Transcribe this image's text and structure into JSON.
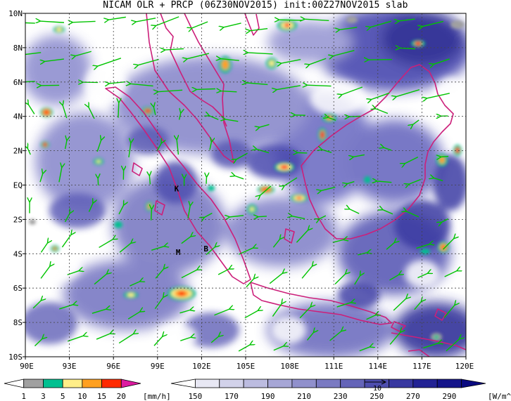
{
  "title": "NICAM OLR + PRCP (06Z30NOV2015) init:00Z27NOV2015 slab",
  "map": {
    "lon_range": [
      90,
      120
    ],
    "lat_range": [
      -10,
      10
    ],
    "x_ticks": [
      "90E",
      "93E",
      "96E",
      "99E",
      "102E",
      "105E",
      "108E",
      "111E",
      "114E",
      "117E",
      "120E"
    ],
    "y_ticks": [
      "10N",
      "8N",
      "6N",
      "4N",
      "2N",
      "EQ",
      "2S",
      "4S",
      "6S",
      "8S",
      "10S"
    ],
    "markers": [
      {
        "label": "K",
        "lon": 100.3,
        "lat": -0.2
      },
      {
        "label": "M",
        "lon": 100.4,
        "lat": -3.9
      },
      {
        "label": "B",
        "lon": 102.3,
        "lat": -3.7
      }
    ]
  },
  "colors": {
    "coast": "#cc1f7a",
    "wind": "#00c400",
    "grid": "#444444"
  },
  "precip_colorbar": {
    "labels": [
      "1",
      "3",
      "5",
      "10",
      "15",
      "20"
    ],
    "unit": "[mm/h]",
    "colors": [
      "#ffffff",
      "#a0a0a0",
      "#00c090",
      "#ffee88",
      "#ffa020",
      "#ff2a00",
      "#dd1aa0"
    ]
  },
  "olr_colorbar": {
    "labels": [
      "150",
      "170",
      "190",
      "210",
      "230",
      "250",
      "270",
      "290"
    ],
    "unit": "[W/m^2]",
    "vector_label": "10",
    "colors": [
      "#ffffff",
      "#e8e8f4",
      "#d2d2ea",
      "#bcbce0",
      "#a6a6d6",
      "#9090cc",
      "#7a7ac2",
      "#6464b8",
      "#4e4eae",
      "#3838a0",
      "#222294",
      "#14148a",
      "#0a0a80"
    ]
  }
}
